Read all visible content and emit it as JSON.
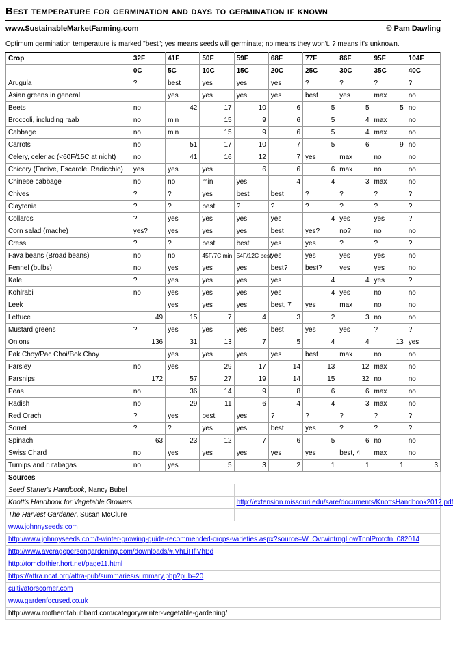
{
  "title": "Best temperature for germination and days to germination if known",
  "site": "www.SustainableMarketFarming.com",
  "author": "© Pam Dawling",
  "note": "Optimum germination temperature is marked \"best\"; yes means seeds will germinate; no means they won't. ? means it's unknown.",
  "headerF": [
    "Crop",
    "32F",
    "41F",
    "50F",
    "59F",
    "68F",
    "77F",
    "86F",
    "95F",
    "104F"
  ],
  "headerC": [
    "",
    "0C",
    "5C",
    "10C",
    "15C",
    "20C",
    "25C",
    "30C",
    "35C",
    "40C"
  ],
  "rows": [
    {
      "crop": "Arugula",
      "cells": [
        [
          "?",
          "t"
        ],
        [
          "best",
          "t"
        ],
        [
          "yes",
          "t"
        ],
        [
          "yes",
          "t"
        ],
        [
          "yes",
          "t"
        ],
        [
          "?",
          "t"
        ],
        [
          "?",
          "t"
        ],
        [
          "?",
          "t"
        ],
        [
          "?",
          "t"
        ]
      ]
    },
    {
      "crop": "Asian greens in general",
      "cells": [
        [
          "",
          ""
        ],
        [
          "yes",
          "t"
        ],
        [
          "yes",
          "t"
        ],
        [
          "yes",
          "t"
        ],
        [
          "yes",
          "t"
        ],
        [
          "best",
          "t"
        ],
        [
          "yes",
          "t"
        ],
        [
          "max",
          "t"
        ],
        [
          "no",
          "t"
        ]
      ]
    },
    {
      "crop": "Beets",
      "cells": [
        [
          "no",
          "t"
        ],
        [
          "42",
          "n"
        ],
        [
          "17",
          "n"
        ],
        [
          "10",
          "n"
        ],
        [
          "6",
          "n"
        ],
        [
          "5",
          "n"
        ],
        [
          "5",
          "n"
        ],
        [
          "5",
          "n"
        ],
        [
          "no",
          "t"
        ]
      ]
    },
    {
      "crop": "Broccoli, including raab",
      "cells": [
        [
          "no",
          "t"
        ],
        [
          "min",
          "t"
        ],
        [
          "15",
          "n"
        ],
        [
          "9",
          "n"
        ],
        [
          "6",
          "n"
        ],
        [
          "5",
          "n"
        ],
        [
          "4",
          "n"
        ],
        [
          "max",
          "t"
        ],
        [
          "no",
          "t"
        ]
      ]
    },
    {
      "crop": "Cabbage",
      "cells": [
        [
          "no",
          "t"
        ],
        [
          "min",
          "t"
        ],
        [
          "15",
          "n"
        ],
        [
          "9",
          "n"
        ],
        [
          "6",
          "n"
        ],
        [
          "5",
          "n"
        ],
        [
          "4",
          "n"
        ],
        [
          "max",
          "t"
        ],
        [
          "no",
          "t"
        ]
      ]
    },
    {
      "crop": "Carrots",
      "cells": [
        [
          "no",
          "t"
        ],
        [
          "51",
          "n"
        ],
        [
          "17",
          "n"
        ],
        [
          "10",
          "n"
        ],
        [
          "7",
          "n"
        ],
        [
          "5",
          "n"
        ],
        [
          "6",
          "n"
        ],
        [
          "9",
          "n"
        ],
        [
          "no",
          "t"
        ]
      ]
    },
    {
      "crop": "Celery, celeriac (<60F/15C at night)",
      "cells": [
        [
          "no",
          "t"
        ],
        [
          "41",
          "n"
        ],
        [
          "16",
          "n"
        ],
        [
          "12",
          "n"
        ],
        [
          "7",
          "n"
        ],
        [
          "yes",
          "t"
        ],
        [
          "max",
          "t"
        ],
        [
          "no",
          "t"
        ],
        [
          "no",
          "t"
        ]
      ]
    },
    {
      "crop": "Chicory (Endive, Escarole, Radicchio)",
      "cells": [
        [
          "yes",
          "t"
        ],
        [
          "yes",
          "t"
        ],
        [
          "yes",
          "t"
        ],
        [
          "6",
          "n"
        ],
        [
          "6",
          "n"
        ],
        [
          "6",
          "n"
        ],
        [
          "max",
          "t"
        ],
        [
          "no",
          "t"
        ],
        [
          "no",
          "t"
        ]
      ]
    },
    {
      "crop": "Chinese cabbage",
      "cells": [
        [
          "no",
          "t"
        ],
        [
          "no",
          "t"
        ],
        [
          "min",
          "t"
        ],
        [
          "yes",
          "t"
        ],
        [
          "4",
          "n"
        ],
        [
          "4",
          "n"
        ],
        [
          "3",
          "n"
        ],
        [
          "max",
          "t"
        ],
        [
          "no",
          "t"
        ]
      ]
    },
    {
      "crop": "Chives",
      "cells": [
        [
          "?",
          "t"
        ],
        [
          "?",
          "t"
        ],
        [
          "yes",
          "t"
        ],
        [
          "best",
          "t"
        ],
        [
          "best",
          "t"
        ],
        [
          "?",
          "t"
        ],
        [
          "?",
          "t"
        ],
        [
          "?",
          "t"
        ],
        [
          "?",
          "t"
        ]
      ]
    },
    {
      "crop": "Claytonia",
      "cells": [
        [
          "?",
          "t"
        ],
        [
          "?",
          "t"
        ],
        [
          "best",
          "t"
        ],
        [
          "?",
          "t"
        ],
        [
          "?",
          "t"
        ],
        [
          "?",
          "t"
        ],
        [
          "?",
          "t"
        ],
        [
          "?",
          "t"
        ],
        [
          "?",
          "t"
        ]
      ]
    },
    {
      "crop": "Collards",
      "cells": [
        [
          "?",
          "t"
        ],
        [
          "yes",
          "t"
        ],
        [
          "yes",
          "t"
        ],
        [
          "yes",
          "t"
        ],
        [
          "yes",
          "t"
        ],
        [
          "4",
          "n"
        ],
        [
          "yes",
          "t"
        ],
        [
          "yes",
          "t"
        ],
        [
          "?",
          "t"
        ]
      ]
    },
    {
      "crop": "Corn salad (mache)",
      "cells": [
        [
          "yes?",
          "t"
        ],
        [
          "yes",
          "t"
        ],
        [
          "yes",
          "t"
        ],
        [
          "yes",
          "t"
        ],
        [
          "best",
          "t"
        ],
        [
          "yes?",
          "t"
        ],
        [
          "no?",
          "t"
        ],
        [
          "no",
          "t"
        ],
        [
          "no",
          "t"
        ]
      ]
    },
    {
      "crop": "Cress",
      "cells": [
        [
          "?",
          "t"
        ],
        [
          "?",
          "t"
        ],
        [
          "best",
          "t"
        ],
        [
          "best",
          "t"
        ],
        [
          "yes",
          "t"
        ],
        [
          "yes",
          "t"
        ],
        [
          "?",
          "t"
        ],
        [
          "?",
          "t"
        ],
        [
          "?",
          "t"
        ]
      ]
    },
    {
      "crop": "Fava beans (Broad beans)",
      "cells": [
        [
          "no",
          "t"
        ],
        [
          "no",
          "t"
        ],
        [
          "45F/7C min",
          "y"
        ],
        [
          "54F/12C best",
          "y"
        ],
        [
          "yes",
          "t"
        ],
        [
          "yes",
          "t"
        ],
        [
          "yes",
          "t"
        ],
        [
          "yes",
          "t"
        ],
        [
          "no",
          "t"
        ]
      ]
    },
    {
      "crop": "Fennel (bulbs)",
      "cells": [
        [
          "no",
          "t"
        ],
        [
          "yes",
          "t"
        ],
        [
          "yes",
          "t"
        ],
        [
          "yes",
          "t"
        ],
        [
          "best?",
          "t"
        ],
        [
          "best?",
          "t"
        ],
        [
          "yes",
          "t"
        ],
        [
          "yes",
          "t"
        ],
        [
          "no",
          "t"
        ]
      ]
    },
    {
      "crop": "Kale",
      "cells": [
        [
          "?",
          "t"
        ],
        [
          "yes",
          "t"
        ],
        [
          "yes",
          "t"
        ],
        [
          "yes",
          "t"
        ],
        [
          "yes",
          "t"
        ],
        [
          "4",
          "n"
        ],
        [
          "4",
          "n"
        ],
        [
          "yes",
          "t"
        ],
        [
          "?",
          "t"
        ]
      ]
    },
    {
      "crop": "Kohlrabi",
      "cells": [
        [
          "no",
          "t"
        ],
        [
          "yes",
          "t"
        ],
        [
          "yes",
          "t"
        ],
        [
          "yes",
          "t"
        ],
        [
          "yes",
          "t"
        ],
        [
          "4",
          "n"
        ],
        [
          "yes",
          "t"
        ],
        [
          "no",
          "t"
        ],
        [
          "no",
          "t"
        ]
      ]
    },
    {
      "crop": "Leek",
      "cells": [
        [
          "",
          ""
        ],
        [
          "yes",
          "t"
        ],
        [
          "yes",
          "t"
        ],
        [
          "yes",
          "t"
        ],
        [
          "best, 7",
          "t"
        ],
        [
          "yes",
          "t"
        ],
        [
          "max",
          "t"
        ],
        [
          "no",
          "t"
        ],
        [
          "no",
          "t"
        ]
      ]
    },
    {
      "crop": "Lettuce",
      "cells": [
        [
          "49",
          "n"
        ],
        [
          "15",
          "n"
        ],
        [
          "7",
          "n"
        ],
        [
          "4",
          "n"
        ],
        [
          "3",
          "n"
        ],
        [
          "2",
          "n"
        ],
        [
          "3",
          "n"
        ],
        [
          "no",
          "t"
        ],
        [
          "no",
          "t"
        ]
      ]
    },
    {
      "crop": "Mustard greens",
      "cells": [
        [
          "?",
          "t"
        ],
        [
          "yes",
          "t"
        ],
        [
          "yes",
          "t"
        ],
        [
          "yes",
          "t"
        ],
        [
          "best",
          "t"
        ],
        [
          "yes",
          "t"
        ],
        [
          "yes",
          "t"
        ],
        [
          "?",
          "t"
        ],
        [
          "?",
          "t"
        ]
      ]
    },
    {
      "crop": "Onions",
      "cells": [
        [
          "136",
          "n"
        ],
        [
          "31",
          "n"
        ],
        [
          "13",
          "n"
        ],
        [
          "7",
          "n"
        ],
        [
          "5",
          "n"
        ],
        [
          "4",
          "n"
        ],
        [
          "4",
          "n"
        ],
        [
          "13",
          "n"
        ],
        [
          "yes",
          "t"
        ]
      ]
    },
    {
      "crop": "Pak Choy/Pac Choi/Bok Choy",
      "cells": [
        [
          "",
          ""
        ],
        [
          "yes",
          "t"
        ],
        [
          "yes",
          "t"
        ],
        [
          "yes",
          "t"
        ],
        [
          "yes",
          "t"
        ],
        [
          "best",
          "t"
        ],
        [
          "max",
          "t"
        ],
        [
          "no",
          "t"
        ],
        [
          "no",
          "t"
        ]
      ]
    },
    {
      "crop": "Parsley",
      "cells": [
        [
          "no",
          "t"
        ],
        [
          "yes",
          "t"
        ],
        [
          "29",
          "n"
        ],
        [
          "17",
          "n"
        ],
        [
          "14",
          "n"
        ],
        [
          "13",
          "n"
        ],
        [
          "12",
          "n"
        ],
        [
          "max",
          "t"
        ],
        [
          "no",
          "t"
        ]
      ]
    },
    {
      "crop": "Parsnips",
      "cells": [
        [
          "172",
          "n"
        ],
        [
          "57",
          "n"
        ],
        [
          "27",
          "n"
        ],
        [
          "19",
          "n"
        ],
        [
          "14",
          "n"
        ],
        [
          "15",
          "n"
        ],
        [
          "32",
          "n"
        ],
        [
          "no",
          "t"
        ],
        [
          "no",
          "t"
        ]
      ]
    },
    {
      "crop": "Peas",
      "cells": [
        [
          "no",
          "t"
        ],
        [
          "36",
          "n"
        ],
        [
          "14",
          "n"
        ],
        [
          "9",
          "n"
        ],
        [
          "8",
          "n"
        ],
        [
          "6",
          "n"
        ],
        [
          "6",
          "n"
        ],
        [
          "max",
          "t"
        ],
        [
          "no",
          "t"
        ]
      ]
    },
    {
      "crop": "Radish",
      "cells": [
        [
          "no",
          "t"
        ],
        [
          "29",
          "n"
        ],
        [
          "11",
          "n"
        ],
        [
          "6",
          "n"
        ],
        [
          "4",
          "n"
        ],
        [
          "4",
          "n"
        ],
        [
          "3",
          "n"
        ],
        [
          "max",
          "t"
        ],
        [
          "no",
          "t"
        ]
      ]
    },
    {
      "crop": "Red Orach",
      "cells": [
        [
          "?",
          "t"
        ],
        [
          "yes",
          "t"
        ],
        [
          "best",
          "t"
        ],
        [
          "yes",
          "t"
        ],
        [
          "?",
          "t"
        ],
        [
          "?",
          "t"
        ],
        [
          "?",
          "t"
        ],
        [
          "?",
          "t"
        ],
        [
          "?",
          "t"
        ]
      ]
    },
    {
      "crop": "Sorrel",
      "cells": [
        [
          "?",
          "t"
        ],
        [
          "?",
          "t"
        ],
        [
          "yes",
          "t"
        ],
        [
          "yes",
          "t"
        ],
        [
          "best",
          "t"
        ],
        [
          "yes",
          "t"
        ],
        [
          "?",
          "t"
        ],
        [
          "?",
          "t"
        ],
        [
          "?",
          "t"
        ]
      ]
    },
    {
      "crop": "Spinach",
      "cells": [
        [
          "63",
          "n"
        ],
        [
          "23",
          "n"
        ],
        [
          "12",
          "n"
        ],
        [
          "7",
          "n"
        ],
        [
          "6",
          "n"
        ],
        [
          "5",
          "n"
        ],
        [
          "6",
          "n"
        ],
        [
          "no",
          "t"
        ],
        [
          "no",
          "t"
        ]
      ]
    },
    {
      "crop": "Swiss Chard",
      "cells": [
        [
          "no",
          "t"
        ],
        [
          "yes",
          "t"
        ],
        [
          "yes",
          "t"
        ],
        [
          "yes",
          "t"
        ],
        [
          "yes",
          "t"
        ],
        [
          "yes",
          "t"
        ],
        [
          "best, 4",
          "t"
        ],
        [
          "max",
          "t"
        ],
        [
          "no",
          "t"
        ]
      ]
    },
    {
      "crop": "Turnips and rutabagas",
      "cells": [
        [
          "no",
          "t"
        ],
        [
          "yes",
          "t"
        ],
        [
          "5",
          "n"
        ],
        [
          "3",
          "n"
        ],
        [
          "2",
          "n"
        ],
        [
          "1",
          "n"
        ],
        [
          "1",
          "n"
        ],
        [
          "1",
          "n"
        ],
        [
          "3",
          "n"
        ]
      ]
    }
  ],
  "sourcesLabel": "Sources",
  "sources": [
    {
      "left": "Seed Starter's Handbook, Nancy Bubel",
      "italic_part": "Seed Starter's Handbook",
      "plain": ", Nancy Bubel",
      "link": ""
    },
    {
      "left": "Knott's Handbook for Vegetable Growers",
      "italic_part": "Knott's Handbook for Vegetable Growers",
      "plain": "",
      "link": "http://extension.missouri.edu/sare/documents/KnottsHandbook2012.pdf"
    },
    {
      "left": "The Harvest Gardener, Susan McClure",
      "italic_part": "The Harvest Gardener",
      "plain": ", Susan McClure",
      "link": ""
    },
    {
      "left": "",
      "link": "www.johnnyseeds.com",
      "fullrow": true
    },
    {
      "left": "",
      "link": "http://www.johnnyseeds.com/t-winter-growing-guide-recommended-crops-varieties.aspx?source=W_OvrwintrngLowTnnlProtctn_082014",
      "fullrow": true
    },
    {
      "left": "",
      "link": "http://www.averagepersongardening.com/downloads/#.VhLiHflVhBd",
      "fullrow": true
    },
    {
      "left": "",
      "link": "http://tomclothier.hort.net/page11.html",
      "fullrow": true
    },
    {
      "left": "",
      "link": "https://attra.ncat.org/attra-pub/summaries/summary.php?pub=20",
      "fullrow": true
    },
    {
      "left": "",
      "link": "cultivatorscorner.com",
      "fullrow": true
    },
    {
      "left": "",
      "link": "www.gardenfocused.co.uk",
      "fullrow": true
    },
    {
      "left": "",
      "link": "http://www.motherofahubbard.com/category/winter-vegetable-gardening/",
      "fullrow": true,
      "plainlink": true
    }
  ]
}
